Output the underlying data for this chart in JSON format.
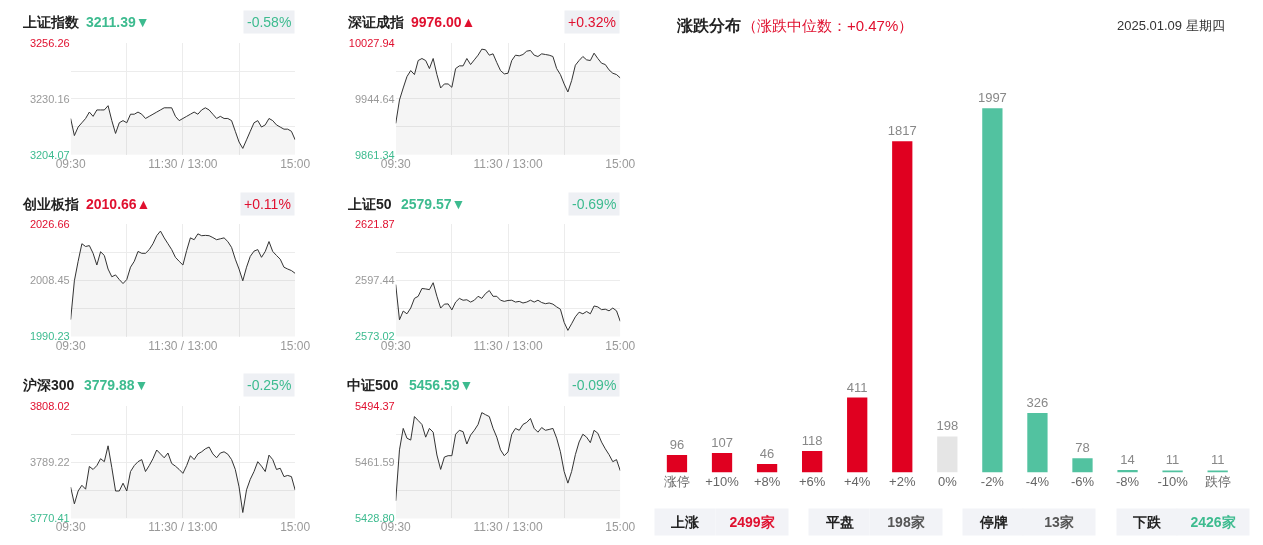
{
  "chart_data": [
    {
      "type": "area",
      "title": "上证指数",
      "subtitle": "3211.39▼",
      "annotations": [
        "-0.58%"
      ],
      "grid": true,
      "ylim": [
        3204.07,
        3256.26
      ],
      "yticks": [
        3204.07,
        {
          "value": 3217.12,
          "label": null
        },
        3230.16,
        {
          "value": 3243.21,
          "label": null
        },
        3256.26
      ],
      "categories": [
        "09:30",
        null,
        null,
        null,
        null,
        null,
        null,
        null,
        null,
        null,
        null,
        null,
        null,
        null,
        null,
        null,
        null,
        null,
        null,
        null,
        null,
        null,
        null,
        null,
        null,
        null,
        null,
        null,
        null,
        null,
        "11:30 / 13:00",
        null,
        null,
        null,
        null,
        null,
        null,
        null,
        null,
        null,
        null,
        null,
        null,
        null,
        null,
        null,
        null,
        null,
        null,
        null,
        null,
        null,
        null,
        null,
        null,
        null,
        null,
        null,
        null,
        null,
        "15:00"
      ],
      "series": [
        {
          "color": "#333333",
          "values": [
            3221,
            3213,
            3217,
            3219,
            3221,
            3224,
            3222,
            3225,
            3225,
            3225,
            3227,
            3220,
            3214,
            3219,
            3220,
            3219,
            3223,
            3223,
            3224,
            3223,
            3221,
            3222,
            3223,
            3224,
            3225,
            3226,
            3226,
            3226,
            3222,
            3220,
            3221,
            3222,
            3223,
            3224,
            3223,
            3225,
            3226,
            3225,
            3223,
            3221,
            3222,
            3221,
            3221,
            3220,
            3215,
            3210,
            3207,
            3211,
            3215,
            3219,
            3220,
            3217,
            3218,
            3221,
            3220,
            3218,
            3217,
            3216,
            3216,
            3215,
            3211
          ]
        }
      ]
    },
    {
      "type": "area",
      "title": "深证成指",
      "subtitle": "9976.00▲",
      "annotations": [
        "+0.32%"
      ],
      "grid": true,
      "ylim": [
        9861.34,
        10027.94
      ],
      "yticks": [
        9861.34,
        {
          "value": 9902.99,
          "label": null
        },
        9944.64,
        {
          "value": 9986.29,
          "label": null
        },
        10027.94
      ],
      "categories": [
        "09:30",
        null,
        null,
        null,
        null,
        null,
        null,
        null,
        null,
        null,
        null,
        null,
        null,
        null,
        null,
        null,
        null,
        null,
        null,
        null,
        null,
        null,
        null,
        null,
        null,
        null,
        null,
        null,
        null,
        null,
        "11:30 / 13:00",
        null,
        null,
        null,
        null,
        null,
        null,
        null,
        null,
        null,
        null,
        null,
        null,
        null,
        null,
        null,
        null,
        null,
        null,
        null,
        null,
        null,
        null,
        null,
        null,
        null,
        null,
        null,
        null,
        null,
        "15:00"
      ],
      "series": [
        {
          "color": "#333333",
          "values": [
            9908,
            9943,
            9961,
            9978,
            9987,
            9981,
            10002,
            10005,
            10002,
            9990,
            10005,
            9981,
            9961,
            9967,
            9967,
            9962,
            9990,
            9994,
            9994,
            10005,
            9996,
            10003,
            10010,
            10019,
            10018,
            10010,
            10012,
            9999,
            9987,
            9982,
            9983,
            10002,
            10010,
            10009,
            10011,
            10016,
            10017,
            10010,
            10008,
            10012,
            10011,
            10010,
            10008,
            9990,
            9981,
            9967,
            9955,
            9972,
            9995,
            10002,
            10008,
            10003,
            10002,
            10013,
            10005,
            9998,
            9996,
            9988,
            9983,
            9981,
            9976
          ]
        }
      ]
    },
    {
      "type": "area",
      "title": "创业板指",
      "subtitle": "2010.66▲",
      "annotations": [
        "+0.11%"
      ],
      "grid": true,
      "ylim": [
        1990.23,
        2026.66
      ],
      "yticks": [
        1990.23,
        {
          "value": 1999.34,
          "label": null
        },
        2008.45,
        {
          "value": 2017.56,
          "label": null
        },
        2026.66
      ],
      "categories": [
        "09:30",
        null,
        null,
        null,
        null,
        null,
        null,
        null,
        null,
        null,
        null,
        null,
        null,
        null,
        null,
        null,
        null,
        null,
        null,
        null,
        null,
        null,
        null,
        null,
        null,
        null,
        null,
        null,
        null,
        null,
        "11:30 / 13:00",
        null,
        null,
        null,
        null,
        null,
        null,
        null,
        null,
        null,
        null,
        null,
        null,
        null,
        null,
        null,
        null,
        null,
        null,
        null,
        null,
        null,
        null,
        null,
        null,
        null,
        null,
        null,
        null,
        null,
        "15:00"
      ],
      "series": [
        {
          "color": "#333333",
          "values": [
            1995.7,
            2008.3,
            2014.6,
            2020.3,
            2019.4,
            2019.7,
            2017.2,
            2013.4,
            2017.7,
            2016.5,
            2012.1,
            2009.6,
            2010.2,
            2008.7,
            2007.4,
            2008.7,
            2012.7,
            2014.6,
            2017.8,
            2017.2,
            2017.2,
            2018.4,
            2020.3,
            2022.9,
            2024.4,
            2022.2,
            2020.3,
            2018.4,
            2015.9,
            2014.6,
            2013.4,
            2018.1,
            2022.2,
            2021.6,
            2023.5,
            2022.9,
            2023.0,
            2022.9,
            2022.3,
            2021.6,
            2021.9,
            2022.2,
            2021.0,
            2019.1,
            2015.3,
            2012.1,
            2008.3,
            2012.7,
            2016.2,
            2017.9,
            2018.4,
            2015.9,
            2017.8,
            2021.0,
            2017.8,
            2016.5,
            2015.3,
            2012.7,
            2012.1,
            2011.6,
            2010.7
          ]
        }
      ]
    },
    {
      "type": "area",
      "title": "上证50",
      "subtitle": "2579.57▼",
      "annotations": [
        "-0.69%"
      ],
      "grid": true,
      "ylim": [
        2573.02,
        2621.87
      ],
      "yticks": [
        2573.02,
        {
          "value": 2585.23,
          "label": null
        },
        2597.44,
        {
          "value": 2609.66,
          "label": null
        },
        2621.87
      ],
      "categories": [
        "09:30",
        null,
        null,
        null,
        null,
        null,
        null,
        null,
        null,
        null,
        null,
        null,
        null,
        null,
        null,
        null,
        null,
        null,
        null,
        null,
        null,
        null,
        null,
        null,
        null,
        null,
        null,
        null,
        null,
        null,
        "11:30 / 13:00",
        null,
        null,
        null,
        null,
        null,
        null,
        null,
        null,
        null,
        null,
        null,
        null,
        null,
        null,
        null,
        null,
        null,
        null,
        null,
        null,
        null,
        null,
        null,
        null,
        null,
        null,
        null,
        null,
        null,
        "15:00"
      ],
      "series": [
        {
          "color": "#333333",
          "values": [
            2595.6,
            2580.3,
            2584.1,
            2582.9,
            2585.4,
            2589.6,
            2590.5,
            2593.9,
            2593.7,
            2593.4,
            2596.4,
            2590.5,
            2585.4,
            2587.1,
            2587.2,
            2584.6,
            2588.0,
            2589.6,
            2588.8,
            2589.0,
            2588.0,
            2588.8,
            2590.5,
            2589.6,
            2591.7,
            2593.0,
            2590.5,
            2590.5,
            2588.8,
            2588.3,
            2588.7,
            2588.8,
            2588.0,
            2588.3,
            2587.6,
            2588.0,
            2588.8,
            2588.0,
            2588.8,
            2587.8,
            2587.3,
            2587.6,
            2587.1,
            2585.9,
            2584.9,
            2579.2,
            2575.7,
            2578.6,
            2581.6,
            2583.6,
            2582.9,
            2583.9,
            2582.9,
            2586.3,
            2585.9,
            2584.7,
            2584.9,
            2584.2,
            2585.4,
            2584.2,
            2579.6
          ]
        }
      ]
    },
    {
      "type": "area",
      "title": "沪深300",
      "subtitle": "3779.88▼",
      "annotations": [
        "-0.25%"
      ],
      "grid": true,
      "ylim": [
        3770.41,
        3808.02
      ],
      "yticks": [
        3770.41,
        {
          "value": 3779.82,
          "label": null
        },
        3789.22,
        {
          "value": 3798.62,
          "label": null
        },
        3808.02
      ],
      "categories": [
        "09:30",
        null,
        null,
        null,
        null,
        null,
        null,
        null,
        null,
        null,
        null,
        null,
        null,
        null,
        null,
        null,
        null,
        null,
        null,
        null,
        null,
        null,
        null,
        null,
        null,
        null,
        null,
        null,
        null,
        null,
        "11:30 / 13:00",
        null,
        null,
        null,
        null,
        null,
        null,
        null,
        null,
        null,
        null,
        null,
        null,
        null,
        null,
        null,
        null,
        null,
        null,
        null,
        null,
        null,
        null,
        null,
        null,
        null,
        null,
        null,
        null,
        null,
        "15:00"
      ],
      "series": [
        {
          "color": "#333333",
          "values": [
            3780.9,
            3775.3,
            3779.6,
            3781.5,
            3780.2,
            3787.8,
            3786.8,
            3788.1,
            3790.4,
            3789.4,
            3794.7,
            3787.4,
            3779.6,
            3779.6,
            3782.2,
            3779.6,
            3786.1,
            3788.1,
            3789.4,
            3790.1,
            3786.1,
            3788.1,
            3790.4,
            3793.3,
            3792.0,
            3790.7,
            3792.3,
            3788.8,
            3787.9,
            3786.8,
            3785.5,
            3788.1,
            3791.4,
            3790.1,
            3792.0,
            3792.7,
            3793.7,
            3794.3,
            3792.0,
            3790.7,
            3792.3,
            3792.7,
            3791.9,
            3790.1,
            3786.8,
            3781.0,
            3772.4,
            3780.0,
            3783.5,
            3786.1,
            3789.4,
            3787.9,
            3786.1,
            3791.6,
            3790.1,
            3786.8,
            3787.2,
            3784.4,
            3784.8,
            3784.4,
            3779.9
          ]
        }
      ]
    },
    {
      "type": "area",
      "title": "中证500",
      "subtitle": "5456.59▼",
      "annotations": [
        "-0.09%"
      ],
      "grid": true,
      "ylim": [
        5428.8,
        5494.37
      ],
      "yticks": [
        {
          "value": 5428.8,
          "label": "5428.80"
        },
        {
          "value": 5445.19,
          "label": null
        },
        5461.59,
        {
          "value": 5477.98,
          "label": null
        },
        5494.37
      ],
      "categories": [
        "09:30",
        null,
        null,
        null,
        null,
        null,
        null,
        null,
        null,
        null,
        null,
        null,
        null,
        null,
        null,
        null,
        null,
        null,
        null,
        null,
        null,
        null,
        null,
        null,
        null,
        null,
        null,
        null,
        null,
        null,
        "11:30 / 13:00",
        null,
        null,
        null,
        null,
        null,
        null,
        null,
        null,
        null,
        null,
        null,
        null,
        null,
        null,
        null,
        null,
        null,
        null,
        null,
        null,
        null,
        null,
        null,
        null,
        null,
        null,
        null,
        null,
        null,
        "15:00"
      ],
      "series": [
        {
          "color": "#333333",
          "values": [
            5439.1,
            5468.8,
            5481.3,
            5475.6,
            5474.5,
            5488.2,
            5485.9,
            5483.6,
            5476.2,
            5481.3,
            5479.1,
            5465.8,
            5457.4,
            5464.6,
            5465.4,
            5465.4,
            5477.9,
            5480.2,
            5479.4,
            5472.2,
            5477.4,
            5480.2,
            5483.6,
            5490.5,
            5489.3,
            5488.2,
            5481.4,
            5476.2,
            5468.8,
            5465.4,
            5467.6,
            5477.9,
            5481.3,
            5480.2,
            5483.6,
            5484.8,
            5487.1,
            5481.3,
            5479.1,
            5481.8,
            5480.2,
            5480.7,
            5481.3,
            5475.6,
            5467.7,
            5456.2,
            5449.4,
            5456.2,
            5466.0,
            5473.4,
            5477.9,
            5476.2,
            5473.0,
            5480.2,
            5478.5,
            5473.3,
            5469.4,
            5466.0,
            5461.9,
            5463.1,
            5456.6
          ]
        }
      ]
    },
    {
      "type": "bar",
      "title": "涨跌分布",
      "subtitle": "（涨跌中位数：+0.47%）",
      "annotations": [
        "2025.01.09 星期四"
      ],
      "categories": [
        "涨停",
        "+10%",
        "+8%",
        "+6%",
        "+4%",
        "+2%",
        "0%",
        "-2%",
        "-4%",
        "-6%",
        "-8%",
        "-10%",
        "跌停"
      ],
      "values": [
        96,
        107,
        46,
        118,
        411,
        1817,
        198,
        1997,
        326,
        78,
        14,
        11,
        11
      ],
      "colors": [
        "#e00020",
        "#e00020",
        "#e00020",
        "#e00020",
        "#e00020",
        "#e00020",
        "#e5e5e5",
        "#52c2a0",
        "#52c2a0",
        "#52c2a0",
        "#52c2a0",
        "#52c2a0",
        "#52c2a0"
      ],
      "data_labels": true
    },
    {
      "type": "other",
      "annotations": [
        "上涨",
        "2499家",
        "平盘",
        "198家",
        "停牌",
        "13家",
        "下跌",
        "2426家"
      ]
    }
  ]
}
